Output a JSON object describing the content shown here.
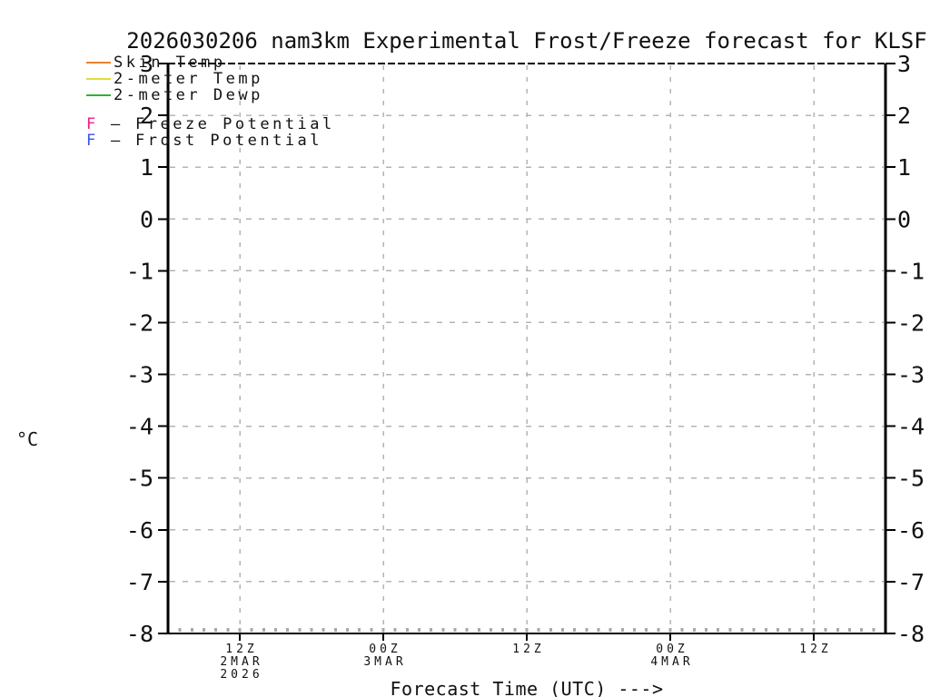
{
  "chart_data": {
    "type": "line",
    "title": "2026030206 nam3km Experimental Frost/Freeze forecast for KLSF",
    "xlabel": "Forecast Time (UTC) --->",
    "ylabel": "°C",
    "ylim": [
      -8,
      3
    ],
    "y_ticks": [
      3,
      2,
      1,
      0,
      -1,
      -2,
      -3,
      -4,
      -5,
      -6,
      -7,
      -8
    ],
    "x_hours_total": 60,
    "x_minor_tick_every_hours": 1,
    "x_major_ticks": [
      {
        "hour": 6,
        "lines": [
          "12Z",
          "2MAR",
          "2026"
        ]
      },
      {
        "hour": 18,
        "lines": [
          "00Z",
          "3MAR"
        ]
      },
      {
        "hour": 30,
        "lines": [
          "12Z"
        ]
      },
      {
        "hour": 42,
        "lines": [
          "00Z",
          "4MAR"
        ]
      },
      {
        "hour": 54,
        "lines": [
          "12Z"
        ]
      }
    ],
    "grid": {
      "horizontal": true,
      "vertical": true,
      "color": "#b4b4b4",
      "minor_tick_color": "#a8a8a8"
    },
    "axis_color": "#000000",
    "legend_position": "top-left",
    "legend_separator": "–",
    "series": [
      {
        "name": "Skin Temp",
        "color": "#e8832c",
        "points": []
      },
      {
        "name": "2-meter Temp",
        "color": "#e2dc3a",
        "points": []
      },
      {
        "name": "2-meter Dewp",
        "color": "#2db42d",
        "points": []
      }
    ],
    "flag_series": [
      {
        "letter": "F",
        "name": "Freeze Potential",
        "color": "#ee1c7e",
        "points": []
      },
      {
        "letter": "F",
        "name": "Frost Potential",
        "color": "#3b50e6",
        "points": []
      }
    ]
  }
}
